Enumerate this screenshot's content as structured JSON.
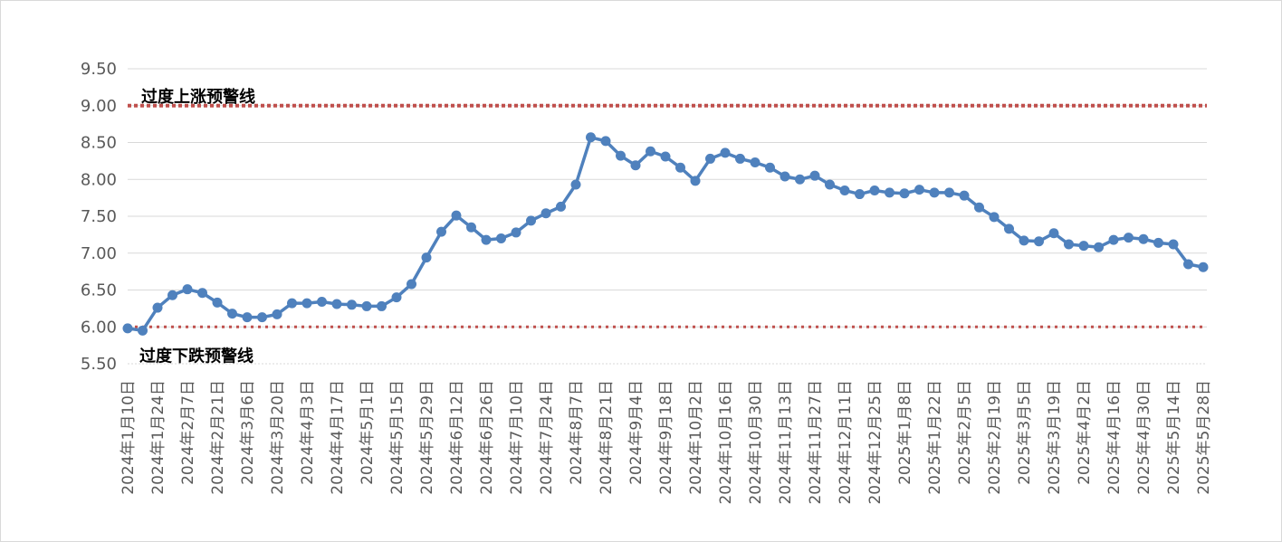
{
  "colors": {
    "series_line": "#4F81BD",
    "warning_line": "#C0504D",
    "grid": "#d9d9d9",
    "axis_text": "#595959"
  },
  "chart_data": {
    "type": "line",
    "title": "",
    "xlabel": "",
    "ylabel": "",
    "ylim": [
      5.5,
      9.5
    ],
    "y_ticks": [
      "5.50",
      "6.00",
      "6.50",
      "7.00",
      "7.50",
      "8.00",
      "8.50",
      "9.00",
      "9.50"
    ],
    "grid": true,
    "legend": "none",
    "x_tick_labels": [
      "2024年1月10日",
      "2024年1月24日",
      "2024年2月7日",
      "2024年2月21日",
      "2024年3月6日",
      "2024年3月20日",
      "2024年4月3日",
      "2024年4月17日",
      "2024年5月1日",
      "2024年5月15日",
      "2024年5月29日",
      "2024年6月12日",
      "2024年6月26日",
      "2024年7月10日",
      "2024年7月24日",
      "2024年8月7日",
      "2024年8月21日",
      "2024年9月4日",
      "2024年9月18日",
      "2024年10月2日",
      "2024年10月16日",
      "2024年10月30日",
      "2024年11月13日",
      "2024年11月27日",
      "2024年12月11日",
      "2024年12月25日",
      "2025年1月8日",
      "2025年1月22日",
      "2025年2月5日",
      "2025年2月19日",
      "2025年3月5日",
      "2025年3月19日",
      "2025年4月2日",
      "2025年4月16日",
      "2025年4月30日",
      "2025年5月14日",
      "2025年5月28日"
    ],
    "series": [
      {
        "values": [
          5.98,
          5.95,
          6.26,
          6.43,
          6.51,
          6.46,
          6.33,
          6.18,
          6.13,
          6.13,
          6.17,
          6.32,
          6.32,
          6.34,
          6.31,
          6.3,
          6.28,
          6.28,
          6.4,
          6.58,
          6.94,
          7.29,
          7.51,
          7.35,
          7.18,
          7.2,
          7.28,
          7.44,
          7.54,
          7.63,
          7.93,
          8.57,
          8.52,
          8.32,
          8.19,
          8.38,
          8.31,
          8.16,
          7.98,
          8.28,
          8.36,
          8.28,
          8.23,
          8.16,
          8.04,
          8.0,
          8.05,
          7.93,
          7.85,
          7.8,
          7.85,
          7.82,
          7.81,
          7.86,
          7.82,
          7.82,
          7.78,
          7.62,
          7.49,
          7.33,
          7.17,
          7.16,
          7.27,
          7.12,
          7.1,
          7.08,
          7.18,
          7.21,
          7.19,
          7.14,
          7.12,
          6.85,
          6.81
        ]
      }
    ],
    "reference_lines": [
      {
        "value": 9.0,
        "label": "过度上涨预警线"
      },
      {
        "value": 6.0,
        "label": "过度下跌预警线"
      }
    ]
  }
}
